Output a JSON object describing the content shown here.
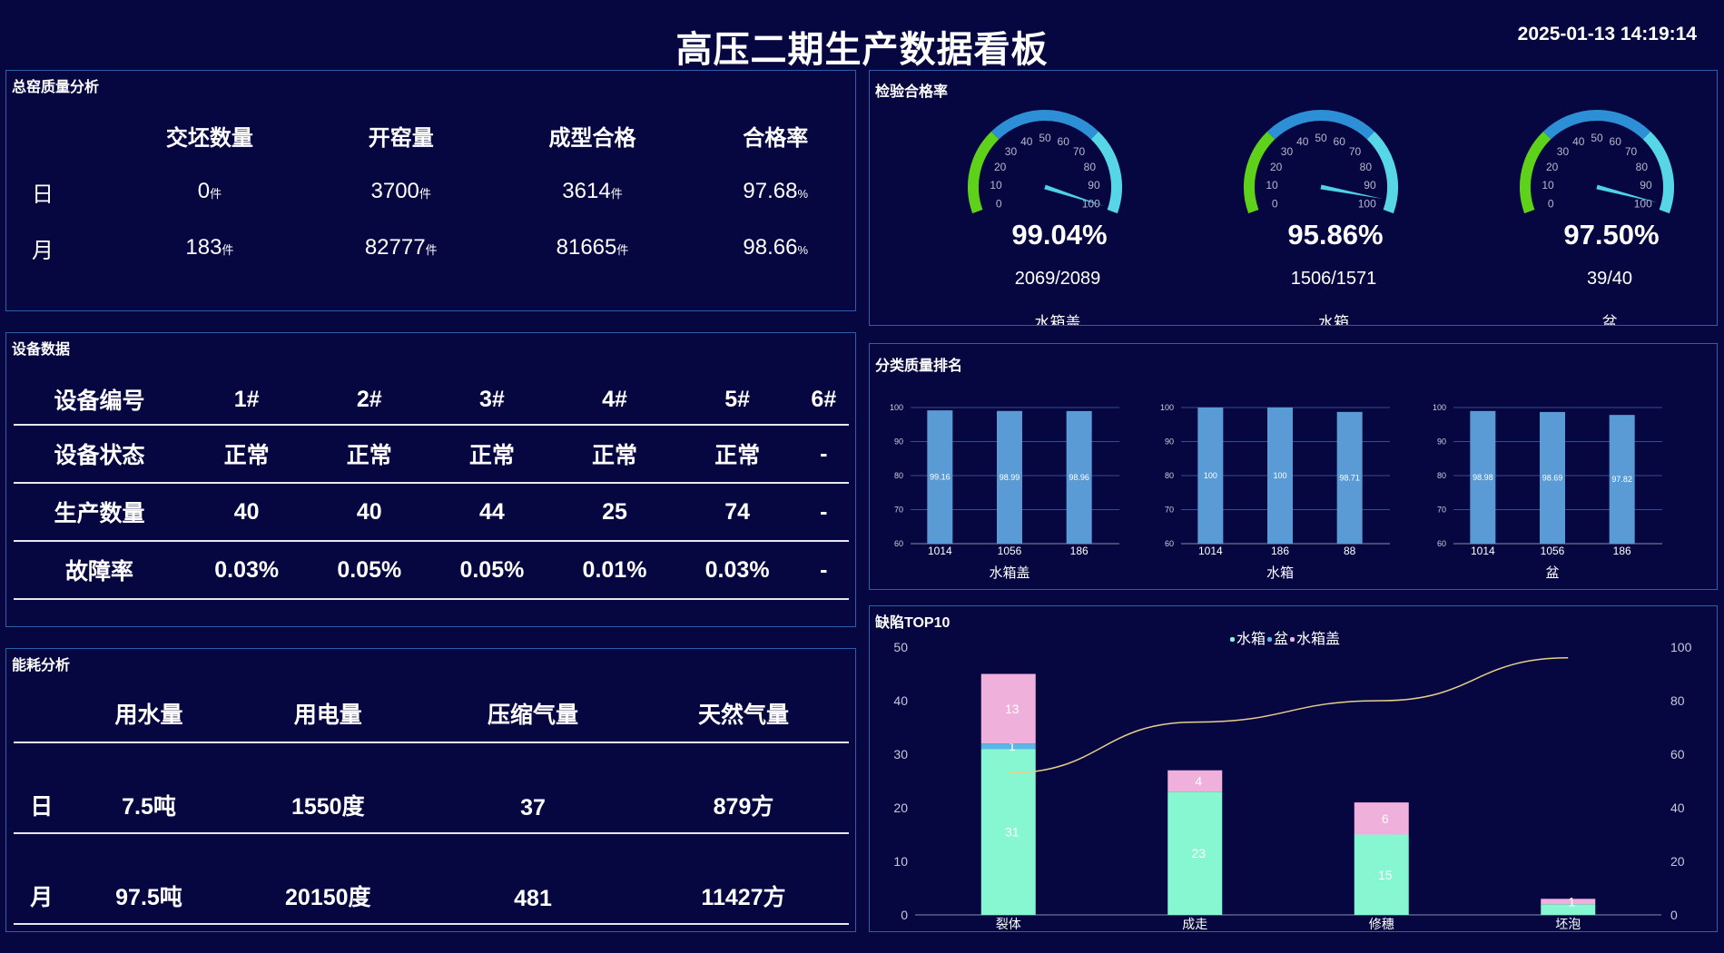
{
  "header": {
    "title": "高压二期生产数据看板",
    "datetime": "2025-01-13 14:19:14"
  },
  "kiln_quality": {
    "title": "总窑质量分析",
    "columns": [
      "",
      "交坯数量",
      "开窑量",
      "成型合格",
      "合格率"
    ],
    "rows": [
      {
        "label": "日",
        "values": [
          "0",
          "3700",
          "3614",
          "97.68"
        ],
        "units": [
          "件",
          "件",
          "件",
          "%"
        ]
      },
      {
        "label": "月",
        "values": [
          "183",
          "82777",
          "81665",
          "98.66"
        ],
        "units": [
          "件",
          "件",
          "件",
          "%"
        ]
      }
    ]
  },
  "device": {
    "title": "设备数据",
    "rows": [
      [
        "设备编号",
        "1#",
        "2#",
        "3#",
        "4#",
        "5#",
        "6#"
      ],
      [
        "设备状态",
        "正常",
        "正常",
        "正常",
        "正常",
        "正常",
        "-"
      ],
      [
        "生产数量",
        "40",
        "40",
        "44",
        "25",
        "74",
        "-"
      ],
      [
        "故障率",
        "0.03%",
        "0.05%",
        "0.05%",
        "0.01%",
        "0.03%",
        "-"
      ]
    ]
  },
  "energy": {
    "title": "能耗分析",
    "columns": [
      "",
      "用水量",
      "用电量",
      "压缩气量",
      "天然气量"
    ],
    "rows": [
      [
        "日",
        "7.5吨",
        "1550度",
        "37",
        "879方"
      ],
      [
        "月",
        "97.5吨",
        "20150度",
        "481",
        "11427方"
      ]
    ]
  },
  "inspection": {
    "title": "检验合格率",
    "ticks": [
      "0",
      "10",
      "20",
      "30",
      "40",
      "50",
      "60",
      "70",
      "80",
      "90",
      "100"
    ],
    "gauges": [
      {
        "name": "水箱盖",
        "value": 99.04,
        "display": "99.04%",
        "ratio": "2069/2089"
      },
      {
        "name": "水箱",
        "value": 95.86,
        "display": "95.86%",
        "ratio": "1506/1571"
      },
      {
        "name": "盆",
        "value": 97.5,
        "display": "97.50%",
        "ratio": "39/40"
      }
    ],
    "colors": {
      "green": "#5ed21a",
      "blue": "#2d8fd5",
      "cyan": "#57d6e8",
      "needle": "#4fd1e6"
    }
  },
  "ranking": {
    "title": "分类质量排名",
    "bar_color": "#5b9bd5"
  },
  "defects": {
    "title": "缺陷TOP10",
    "colors": {
      "水箱": "#86f7d1",
      "盆": "#58b6e8",
      "水箱盖": "#f0b0dc",
      "line": "#e6d08a"
    }
  },
  "chart_data": [
    {
      "type": "bar",
      "title": "",
      "xlabel": "水箱盖",
      "categories": [
        "1014",
        "1056",
        "186"
      ],
      "values": [
        99.16,
        98.99,
        98.96
      ],
      "ylim": [
        60,
        100
      ],
      "yticks": [
        "60",
        "70",
        "80",
        "90",
        "100"
      ],
      "data_labels": [
        "99.16",
        "98.99",
        "98.96"
      ]
    },
    {
      "type": "bar",
      "title": "",
      "xlabel": "水箱",
      "categories": [
        "1014",
        "186",
        "88"
      ],
      "values": [
        100,
        100,
        98.71
      ],
      "ylim": [
        60,
        100
      ],
      "yticks": [
        "60",
        "70",
        "80",
        "90",
        "100"
      ],
      "data_labels": [
        "100",
        "100",
        "98.71"
      ]
    },
    {
      "type": "bar",
      "title": "",
      "xlabel": "盆",
      "categories": [
        "1014",
        "1056",
        "186"
      ],
      "values": [
        98.98,
        98.69,
        97.82
      ],
      "ylim": [
        60,
        100
      ],
      "yticks": [
        "60",
        "70",
        "80",
        "90",
        "100"
      ],
      "data_labels": [
        "98.98",
        "98.69",
        "97.82"
      ]
    },
    {
      "type": "bar",
      "stacked": true,
      "title": "",
      "categories": [
        "裂体",
        "成走",
        "修穗",
        "坯泡"
      ],
      "series": [
        {
          "name": "水箱",
          "values": [
            31,
            23,
            15,
            2
          ],
          "labels": [
            "31",
            "23",
            "15",
            ""
          ]
        },
        {
          "name": "盆",
          "values": [
            1,
            0,
            0,
            0
          ],
          "labels": [
            "1",
            "",
            "",
            ""
          ]
        },
        {
          "name": "水箱盖",
          "values": [
            13,
            4,
            6,
            1
          ],
          "labels": [
            "13",
            "4",
            "6",
            "1"
          ]
        }
      ],
      "line": {
        "values": [
          53,
          72,
          80,
          96
        ],
        "axis": "right"
      },
      "ylim": [
        0,
        50
      ],
      "yticks": [
        "0",
        "10",
        "20",
        "30",
        "40",
        "50"
      ],
      "y2lim": [
        0,
        100
      ],
      "y2ticks": [
        "0",
        "20",
        "40",
        "60",
        "80",
        "100"
      ],
      "legend": "top-center"
    }
  ]
}
